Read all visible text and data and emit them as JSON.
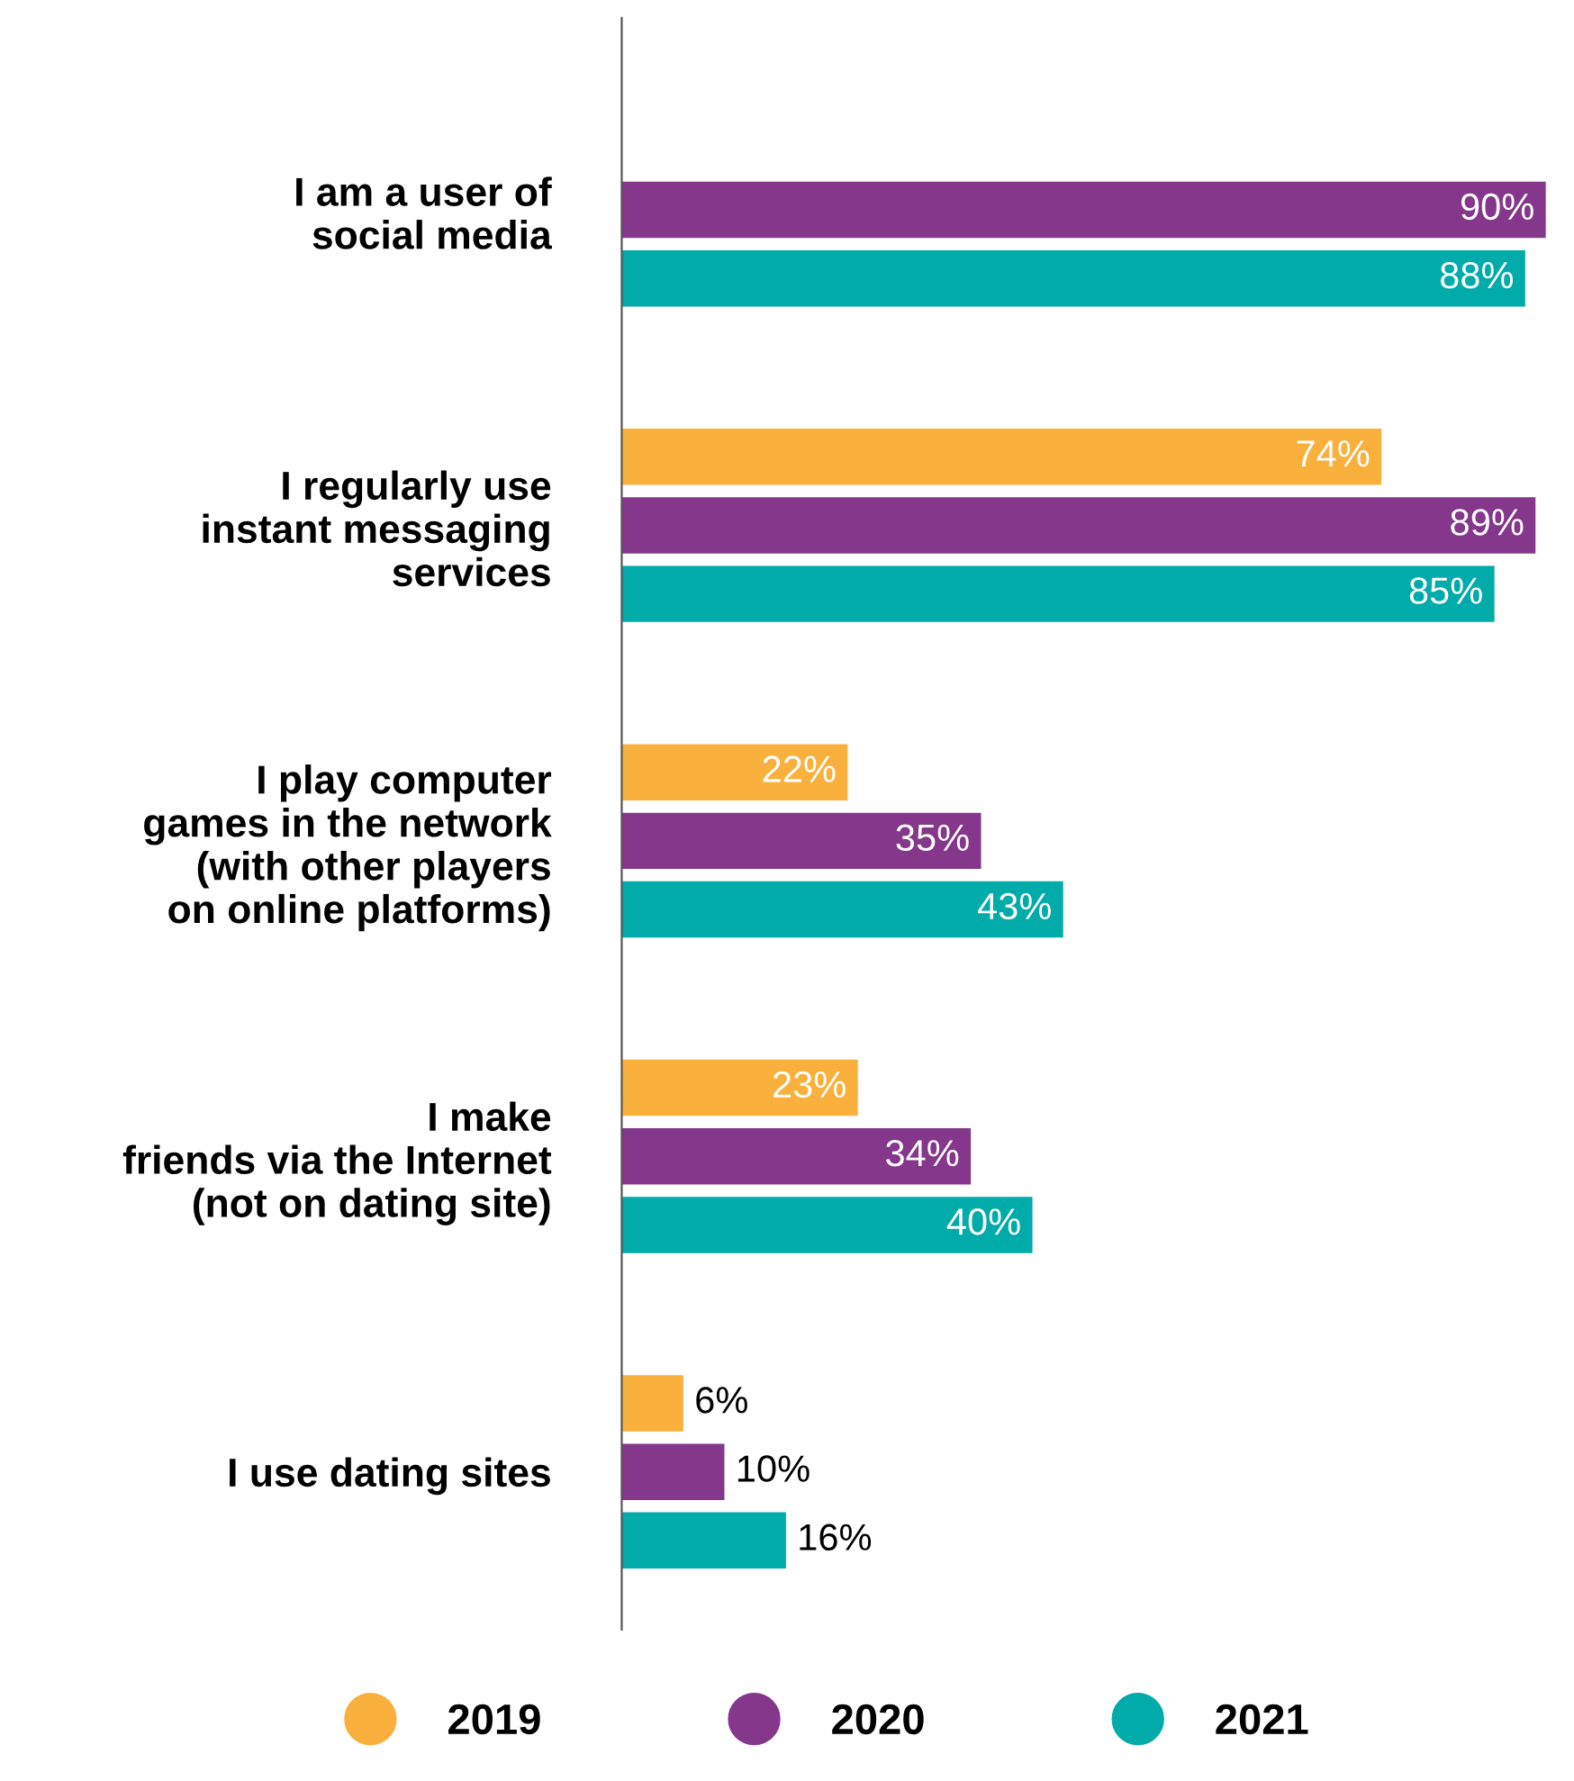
{
  "chart_data": {
    "type": "bar",
    "orientation": "horizontal",
    "legend": "bottom",
    "grid": false,
    "categories": [
      "I am a user of\nsocial media",
      "I regularly use\ninstant messaging\nservices",
      "I play computer\ngames in the network\n(with other players\non online platforms)",
      "I make\nfriends via the Internet\n(not on dating site)",
      "I use dating sites"
    ],
    "series": [
      {
        "name": "2019",
        "color": "#f9b03c",
        "values": [
          null,
          74,
          22,
          23,
          6
        ],
        "value_labels": [
          null,
          "74%",
          "22%",
          "23%",
          "6%"
        ]
      },
      {
        "name": "2020",
        "color": "#84378b",
        "values": [
          90,
          89,
          35,
          34,
          10
        ],
        "value_labels": [
          "90%",
          "89%",
          "35%",
          "34%",
          "10%"
        ]
      },
      {
        "name": "2021",
        "color": "#00aba9",
        "values": [
          88,
          85,
          43,
          40,
          16
        ],
        "value_labels": [
          "88%",
          "85%",
          "43%",
          "40%",
          "16%"
        ]
      }
    ]
  }
}
